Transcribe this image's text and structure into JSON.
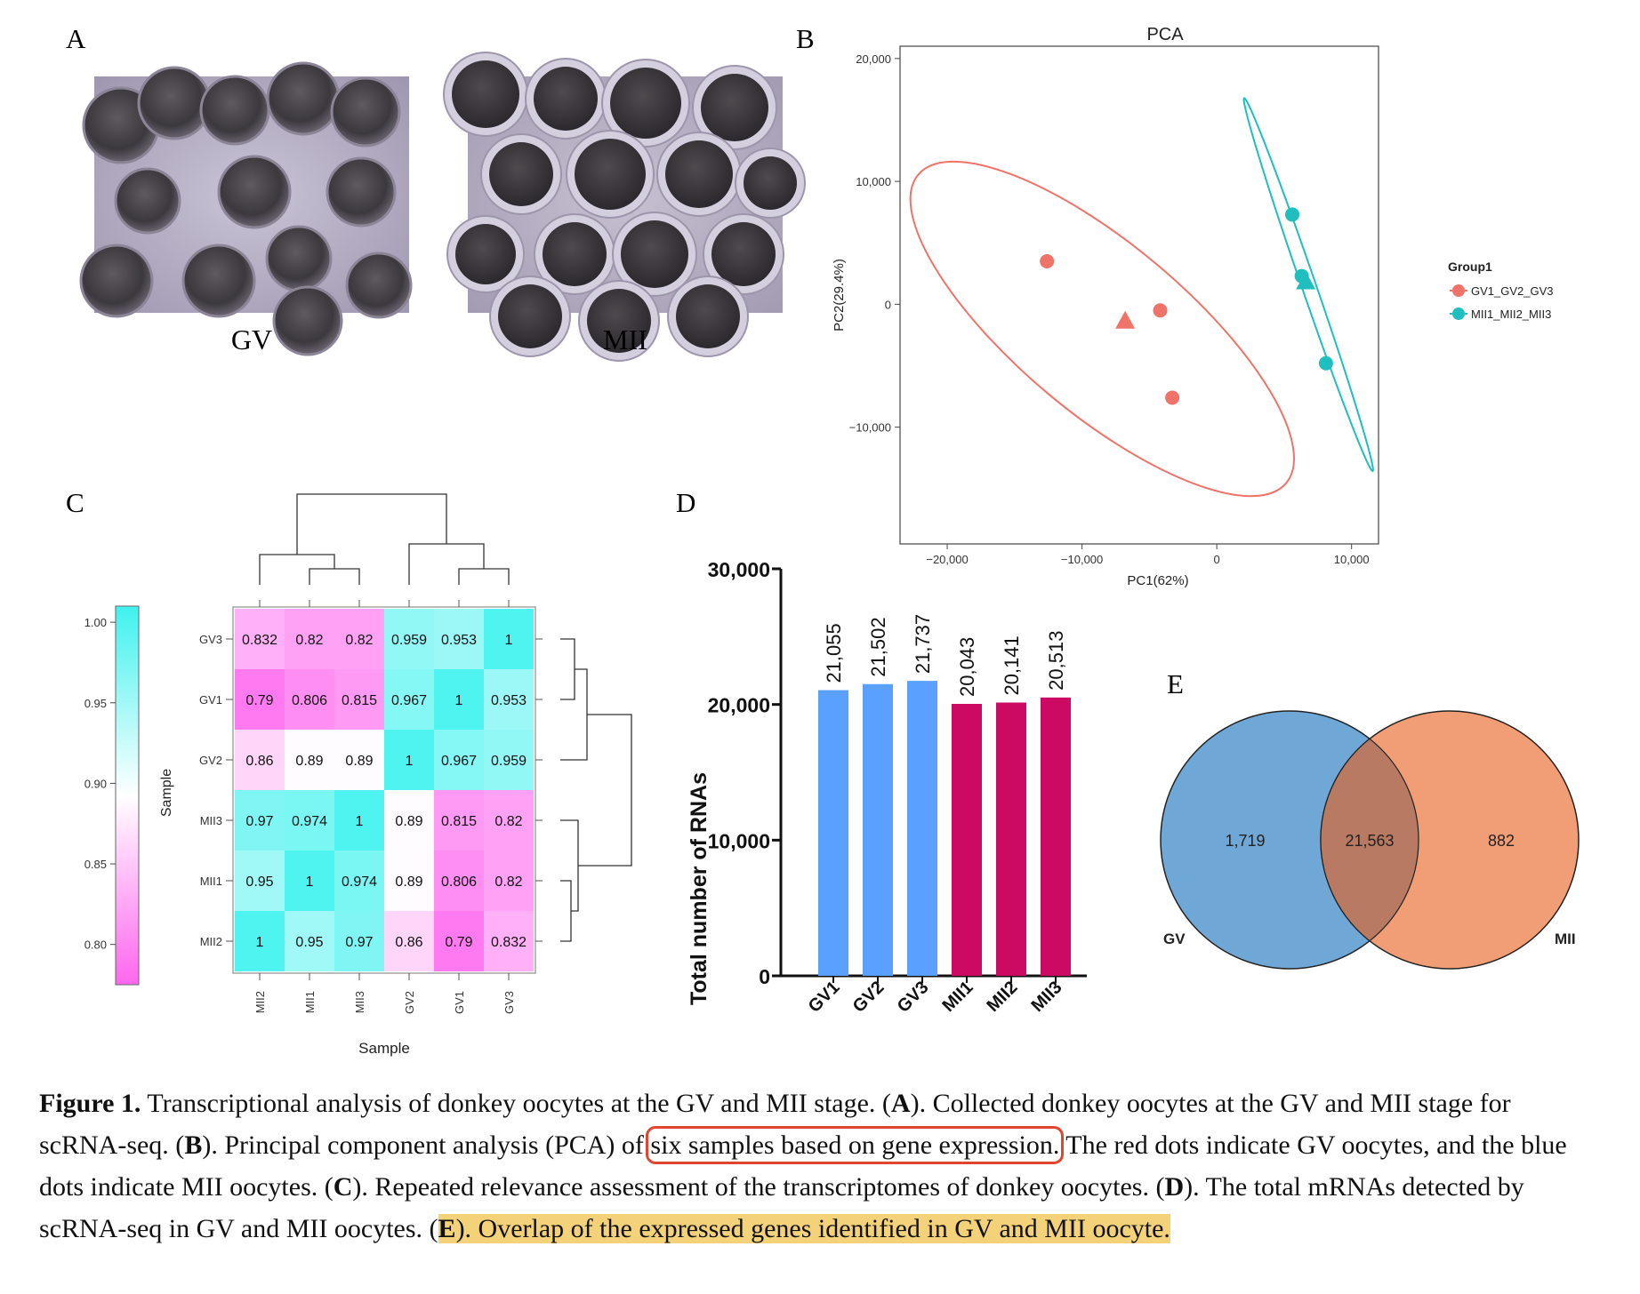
{
  "panel_labels": {
    "a": "A",
    "b": "B",
    "c": "C",
    "d": "D",
    "e": "E"
  },
  "panel_a": {
    "images": [
      {
        "name": "gv-oocytes-photo",
        "label": "GV"
      },
      {
        "name": "mii-oocytes-photo",
        "label": "MII"
      }
    ]
  },
  "colors": {
    "gv_red": "#f0736a",
    "mii_teal": "#1fbfbf",
    "bar_blue": "#5aa0ff",
    "bar_magenta": "#cc0a63",
    "venn_blue": "#6fa8d6",
    "venn_orange": "#f0956a",
    "heat_high": "#3ff2ee",
    "heat_low": "#ff66ee"
  },
  "chart_data": [
    {
      "panel": "B",
      "type": "scatter",
      "title": "PCA",
      "xlabel": "PC1(62%)",
      "ylabel": "PC2(29.4%)",
      "xlim": [
        -23500,
        12000
      ],
      "ylim": [
        -19500,
        21000
      ],
      "xticks": [
        -20000,
        -10000,
        0,
        10000
      ],
      "xtick_labels": [
        "−20,000",
        "−10,000",
        "0",
        "10,000"
      ],
      "yticks": [
        -10000,
        0,
        10000,
        20000
      ],
      "ytick_labels": [
        "−10,000",
        "0",
        "10,000",
        "20,000"
      ],
      "legend": {
        "title": "Group1",
        "placement": "right",
        "entries": [
          "GV1_GV2_GV3",
          "MII1_MII2_MII3"
        ]
      },
      "series": [
        {
          "name": "GV1_GV2_GV3",
          "color": "#f0736a",
          "points": [
            {
              "x": -12600,
              "y": 3500,
              "shape": "circle"
            },
            {
              "x": -6800,
              "y": -1400,
              "shape": "triangle"
            },
            {
              "x": -4200,
              "y": -500,
              "shape": "circle"
            },
            {
              "x": -3300,
              "y": -7600,
              "shape": "circle"
            }
          ]
        },
        {
          "name": "MII1_MII2_MII3",
          "color": "#1fbfbf",
          "points": [
            {
              "x": 5600,
              "y": 7300,
              "shape": "circle"
            },
            {
              "x": 6300,
              "y": 2300,
              "shape": "circle"
            },
            {
              "x": 6600,
              "y": 1800,
              "shape": "triangle"
            },
            {
              "x": 8100,
              "y": -4800,
              "shape": "circle"
            }
          ]
        }
      ]
    },
    {
      "panel": "C",
      "type": "heatmap",
      "xlabel": "Sample",
      "ylabel": "Sample",
      "row_labels": [
        "GV3",
        "GV1",
        "GV2",
        "MII3",
        "MII1",
        "MII2"
      ],
      "col_labels": [
        "MII2",
        "MII1",
        "MII3",
        "GV2",
        "GV1",
        "GV3"
      ],
      "values": [
        [
          "0.832",
          "0.82",
          "0.82",
          "0.959",
          "0.953",
          "1"
        ],
        [
          "0.79",
          "0.806",
          "0.815",
          "0.967",
          "1",
          "0.953"
        ],
        [
          "0.86",
          "0.89",
          "0.89",
          "1",
          "0.967",
          "0.959"
        ],
        [
          "0.97",
          "0.974",
          "1",
          "0.89",
          "0.815",
          "0.82"
        ],
        [
          "0.95",
          "1",
          "0.974",
          "0.89",
          "0.806",
          "0.82"
        ],
        [
          "1",
          "0.95",
          "0.97",
          "0.86",
          "0.79",
          "0.832"
        ]
      ],
      "colorbar": {
        "min": 0.775,
        "max": 1.01,
        "ticks": [
          1.0,
          0.95,
          0.9,
          0.85,
          0.8
        ],
        "tick_labels": [
          "1.00",
          "0.95",
          "0.90",
          "0.85",
          "0.80"
        ]
      }
    },
    {
      "panel": "D",
      "type": "bar",
      "ylabel": "Total number of RNAs",
      "ylim": [
        0,
        30000
      ],
      "yticks": [
        0,
        10000,
        20000,
        30000
      ],
      "ytick_labels": [
        "0",
        "10,000",
        "20,000",
        "30,000"
      ],
      "categories": [
        "GV1",
        "GV2",
        "GV3",
        "MII1",
        "MII2",
        "MII3"
      ],
      "values": [
        21055,
        21502,
        21737,
        20043,
        20141,
        20513
      ],
      "value_labels": [
        "21,055",
        "21,502",
        "21,737",
        "20,043",
        "20,141",
        "20,513"
      ],
      "bar_colors": [
        "#5aa0ff",
        "#5aa0ff",
        "#5aa0ff",
        "#cc0a63",
        "#cc0a63",
        "#cc0a63"
      ]
    },
    {
      "panel": "E",
      "type": "venn",
      "sets": [
        "GV",
        "MII"
      ],
      "values": {
        "gv_only": 1719,
        "both": 21563,
        "mii_only": 882
      },
      "value_labels": {
        "gv_only": "1,719",
        "both": "21,563",
        "mii_only": "882"
      }
    }
  ],
  "caption": {
    "fig": "Figure 1.",
    "t1": " Transcriptional analysis of donkey oocytes at the GV and MII stage. (",
    "a": "A",
    "t2": "). Collected donkey oocytes at the GV and MII stage for scRNA-seq. (",
    "b": "B",
    "t3": "). Principal component analysis (PCA) of ",
    "boxed": "six samples based on gene expression.",
    "t4": " The red dots indicate GV oocytes, and the blue dots indicate MII oocytes. (",
    "c": "C",
    "t5": "). Repeated relevance assessment of the transcriptomes of donkey oocytes. (",
    "d": "D",
    "t6": "). The total mRNAs detected by scRNA-seq in GV and MII oocytes. (",
    "e_hl": "E",
    "hl_text": "). Overlap of the expressed genes identified in GV and MII oocyte."
  }
}
